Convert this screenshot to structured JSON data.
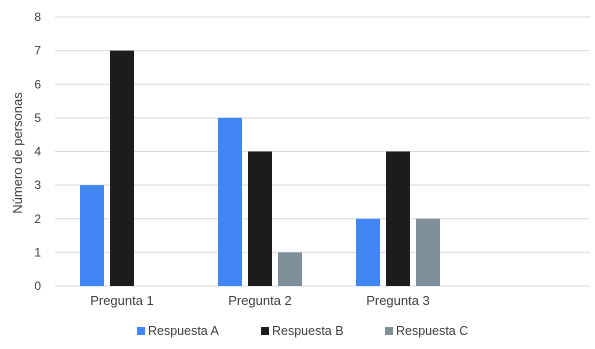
{
  "chart_data": {
    "type": "bar",
    "categories": [
      "Pregunta 1",
      "Pregunta 2",
      "Pregunta 3"
    ],
    "series": [
      {
        "name": "Respuesta A",
        "values": [
          3,
          5,
          2
        ],
        "color": "#4285f4"
      },
      {
        "name": "Respuesta B",
        "values": [
          7,
          4,
          4
        ],
        "color": "#1c1c1c"
      },
      {
        "name": "Respuesta C",
        "values": [
          0,
          1,
          2
        ],
        "color": "#7f8f99"
      }
    ],
    "title": "",
    "xlabel": "",
    "ylabel": "Número de personas",
    "ylim": [
      0,
      8
    ],
    "yticks": [
      0,
      1,
      2,
      3,
      4,
      5,
      6,
      7,
      8
    ],
    "grid": true,
    "legend_position": "bottom"
  }
}
